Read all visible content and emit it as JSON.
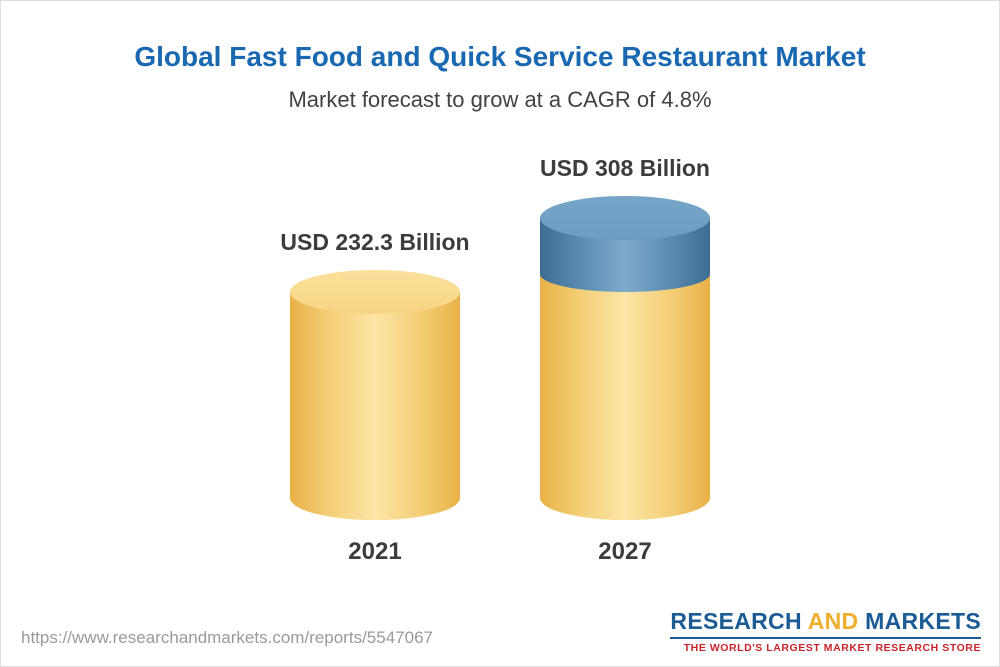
{
  "page": {
    "title": "Global Fast Food and Quick Service Restaurant Market",
    "subtitle": "Market forecast to grow at a CAGR of 4.8%"
  },
  "chart_data": {
    "type": "bar",
    "title": "Global Fast Food and Quick Service Restaurant Market",
    "subtitle": "Market forecast to grow at a CAGR of 4.8%",
    "unit": "USD Billion",
    "cagr": "4.8%",
    "categories": [
      "2021",
      "2027"
    ],
    "values": [
      232.3,
      308
    ],
    "legend": "none",
    "grid": false,
    "bars": [
      {
        "year": "2021",
        "label": "USD 232.3 Billion",
        "value": 232.3,
        "segments": [
          {
            "value": 232.3,
            "color": "gold"
          }
        ]
      },
      {
        "year": "2027",
        "label": "USD 308 Billion",
        "value": 308,
        "segments": [
          {
            "value": 75.7,
            "color": "blue"
          },
          {
            "value": 232.3,
            "color": "gold"
          }
        ]
      }
    ]
  },
  "footer": {
    "url": "https://www.researchandmarkets.com/reports/5547067",
    "logo": {
      "word1": "RESEARCH",
      "word2": "AND",
      "word3": "MARKETS",
      "tagline": "THE WORLD'S LARGEST MARKET RESEARCH STORE"
    }
  },
  "colors": {
    "title_blue": "#1a68b2",
    "text_dark": "#3c3c3c",
    "gold": "#f6c75d",
    "gold_light": "#fce5a6",
    "gold_dark": "#e8b148",
    "gold_top": "#fbdf9b",
    "blue": "#5d8db3",
    "blue_light": "#7fa9cb",
    "blue_dark": "#3e6d94",
    "blue_top": "#6d9dc3",
    "url_gray": "#9a9a9a",
    "logo_blue": "#1c5b94",
    "logo_gold": "#efae2c",
    "logo_red": "#c9252c"
  }
}
